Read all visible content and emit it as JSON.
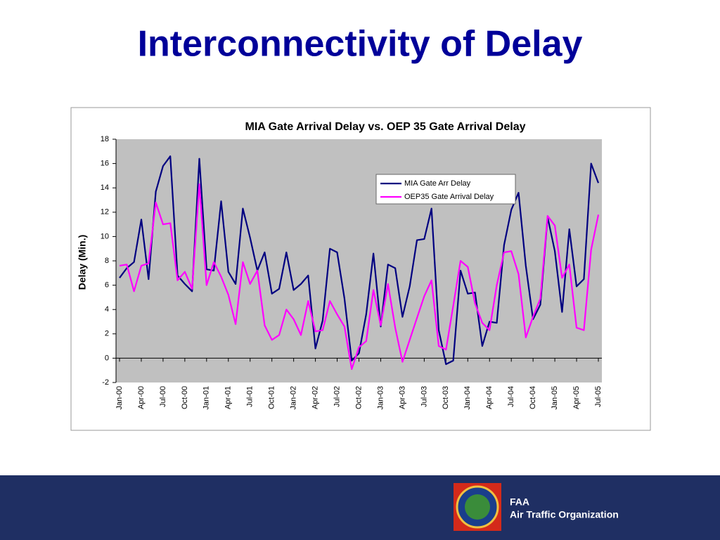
{
  "slide": {
    "title": "Interconnectivity of Delay"
  },
  "chart_data": {
    "type": "line",
    "title": "MIA Gate Arrival Delay vs. OEP 35 Gate Arrival Delay",
    "y_label": "Delay (Min.)",
    "categories": [
      "Jan-00",
      null,
      null,
      "Apr-00",
      null,
      null,
      "Jul-00",
      null,
      null,
      "Oct-00",
      null,
      null,
      "Jan-01",
      null,
      null,
      "Apr-01",
      null,
      null,
      "Jul-01",
      null,
      null,
      "Oct-01",
      null,
      null,
      "Jan-02",
      null,
      null,
      "Apr-02",
      null,
      null,
      "Jul-02",
      null,
      null,
      "Oct-02",
      null,
      null,
      "Jan-03",
      null,
      null,
      "Apr-03",
      null,
      null,
      "Jul-03",
      null,
      null,
      "Oct-03",
      null,
      null,
      "Jan-04",
      null,
      null,
      "Apr-04",
      null,
      null,
      "Jul-04",
      null,
      null,
      "Oct-04",
      null,
      null,
      "Jan-05",
      null,
      null,
      "Apr-05",
      null,
      null,
      "Jul-05"
    ],
    "series": [
      {
        "name": "MIA Gate Arr Delay",
        "color": "#000080",
        "values": [
          6.6,
          7.4,
          7.9,
          11.4,
          6.5,
          13.7,
          15.8,
          16.6,
          6.8,
          6.1,
          5.5,
          16.4,
          7.3,
          7.2,
          12.9,
          7.1,
          6.1,
          12.3,
          9.9,
          7.2,
          8.7,
          5.3,
          5.7,
          8.7,
          5.6,
          6.1,
          6.8,
          0.8,
          3.1,
          9.0,
          8.7,
          4.9,
          -0.2,
          0.4,
          3.6,
          8.6,
          2.6,
          7.7,
          7.4,
          3.4,
          5.9,
          9.7,
          9.8,
          12.3,
          2.3,
          -0.5,
          -0.2,
          7.2,
          5.3,
          5.4,
          1.0,
          3.0,
          2.9,
          9.3,
          12.2,
          13.6,
          7.6,
          3.2,
          4.4,
          11.6,
          8.8,
          3.8,
          10.6,
          5.9,
          6.5,
          16.0,
          14.4
        ]
      },
      {
        "name": "OEP35 Gate Arrival Delay",
        "color": "#ff00ff",
        "values": [
          7.6,
          7.7,
          5.5,
          7.6,
          7.8,
          12.8,
          11.0,
          11.1,
          6.4,
          7.1,
          5.7,
          14.3,
          6.0,
          7.9,
          6.7,
          5.2,
          2.8,
          7.9,
          6.1,
          7.2,
          2.7,
          1.5,
          1.9,
          4.0,
          3.2,
          1.9,
          4.7,
          2.2,
          2.3,
          4.7,
          3.6,
          2.6,
          -0.9,
          0.9,
          1.4,
          5.6,
          2.7,
          6.1,
          2.5,
          -0.3,
          1.5,
          3.3,
          5.1,
          6.4,
          1.0,
          0.7,
          4.3,
          8.0,
          7.5,
          4.5,
          2.9,
          2.3,
          6.0,
          8.7,
          8.8,
          6.9,
          1.7,
          3.4,
          4.9,
          11.7,
          10.9,
          6.6,
          7.7,
          2.5,
          2.3,
          8.9,
          11.8
        ]
      }
    ],
    "ylim": [
      -2,
      18
    ],
    "yticks": [
      -2,
      0,
      2,
      4,
      6,
      8,
      10,
      12,
      14,
      16,
      18
    ],
    "grid": false
  },
  "footer": {
    "line1": "FAA",
    "line2": "Air Traffic Organization"
  }
}
